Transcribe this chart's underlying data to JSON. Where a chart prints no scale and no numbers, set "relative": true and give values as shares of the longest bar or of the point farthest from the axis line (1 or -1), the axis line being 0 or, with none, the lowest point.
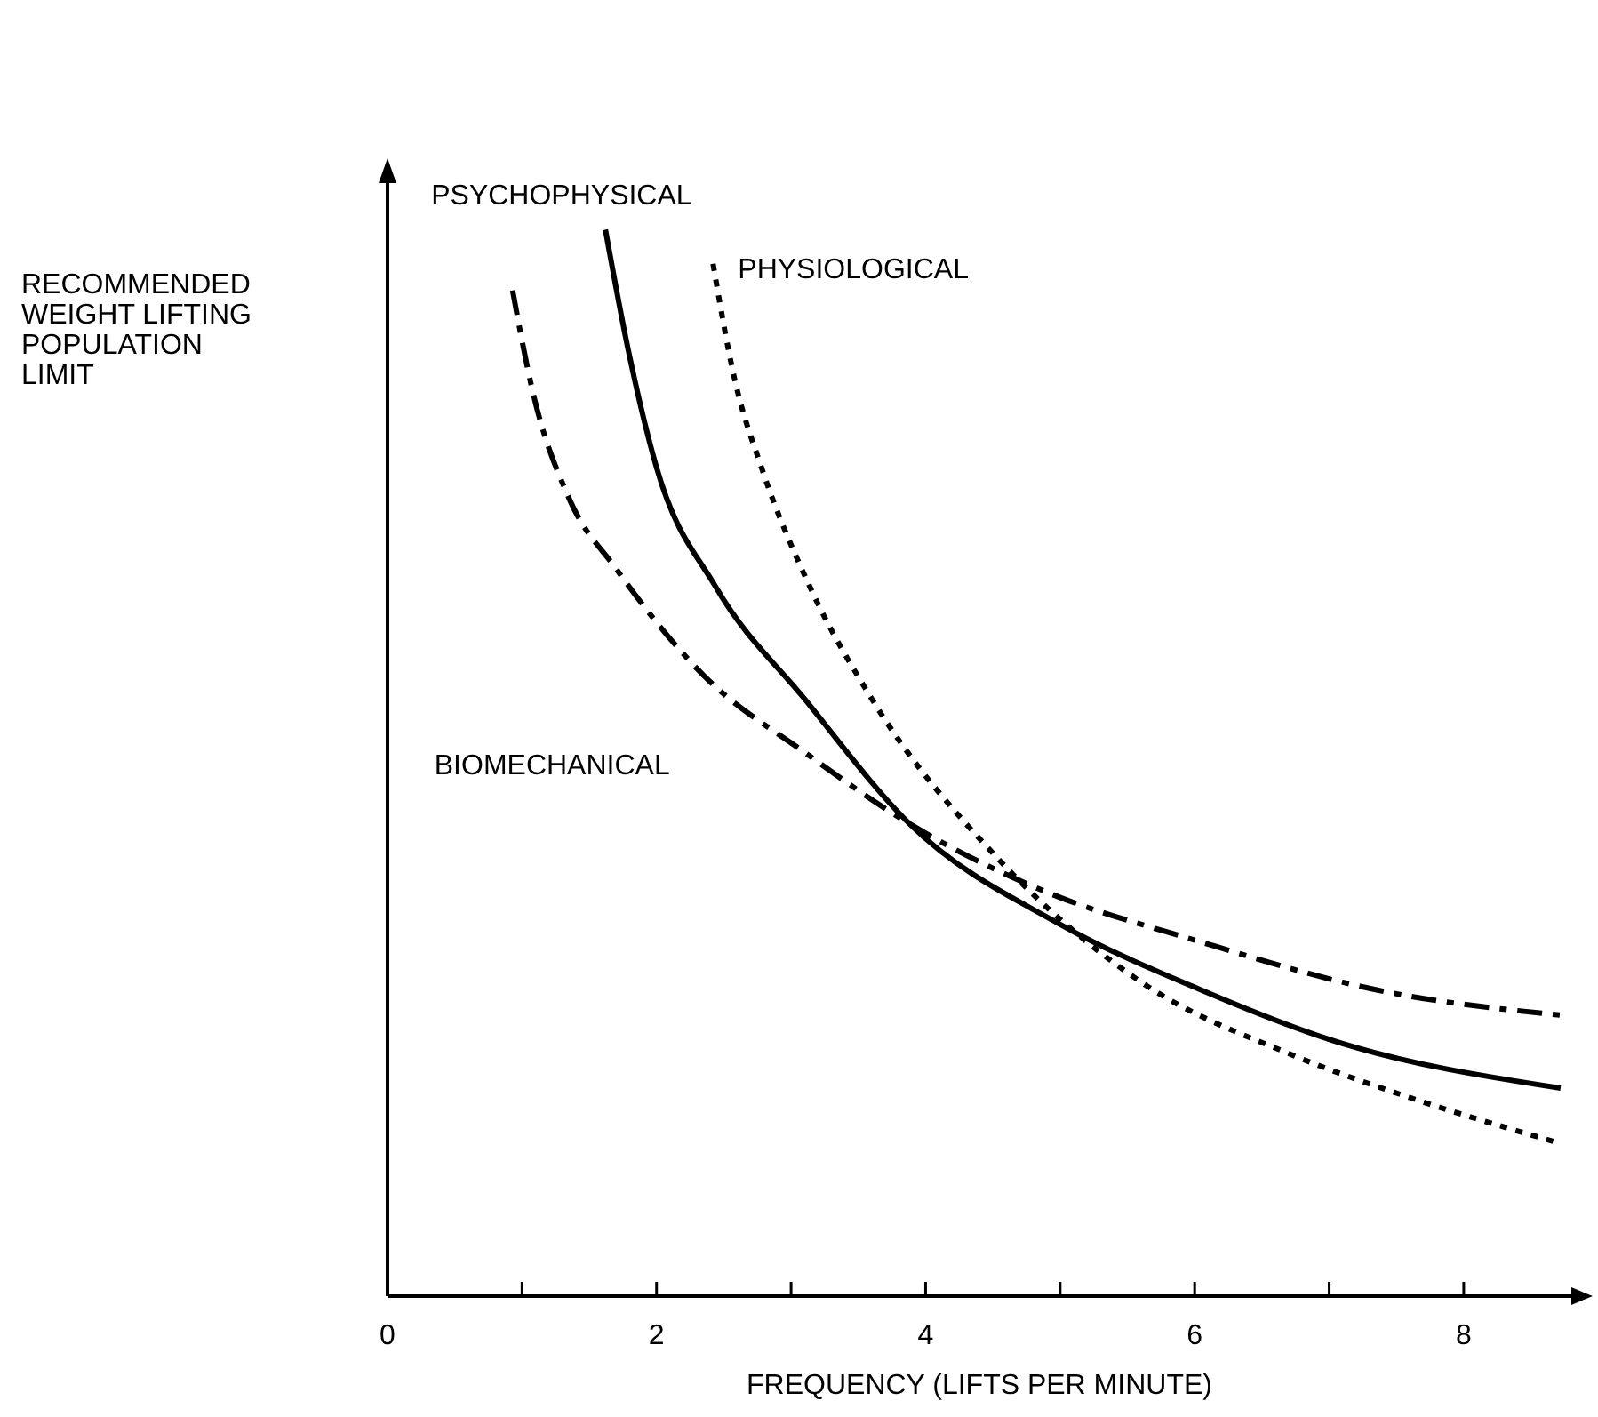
{
  "chart_data": {
    "type": "line",
    "relative": true,
    "xlabel": "FREQUENCY (LIFTS PER MINUTE)",
    "ylabel": "RECOMMENDED WEIGHT LIFTING POPULATION LIMIT",
    "xlim": [
      0,
      8.8
    ],
    "xticks": [
      0,
      {
        "value": 1,
        "label": null
      },
      2,
      {
        "value": 3,
        "label": null
      },
      4,
      {
        "value": 5,
        "label": null
      },
      6,
      {
        "value": 7,
        "label": null
      },
      8
    ],
    "marker": "none",
    "series": [
      {
        "name": "PSYCHOPHYSICAL",
        "color": "#000000",
        "line_style": "solid",
        "x": [
          1.62,
          1.79,
          2.0,
          2.44,
          3.1,
          3.88,
          5.01,
          6.05,
          7.02,
          8.72
        ],
        "values": [
          1.0,
          0.887,
          0.777,
          0.665,
          0.56,
          0.443,
          0.348,
          0.287,
          0.24,
          0.195
        ]
      },
      {
        "name": "PHYSIOLOGICAL",
        "color": "#000000",
        "line_style": "dotted",
        "x": [
          2.42,
          2.58,
          2.78,
          3.14,
          3.6,
          4.54,
          5.62,
          6.71,
          7.58,
          8.67
        ],
        "values": [
          0.968,
          0.86,
          0.777,
          0.665,
          0.56,
          0.41,
          0.293,
          0.227,
          0.187,
          0.145
        ]
      },
      {
        "name": "BIOMECHANICAL",
        "color": "#000000",
        "line_style": "dashdot",
        "x": [
          0.93,
          1.08,
          1.35,
          1.7,
          2.35,
          3.1,
          3.88,
          4.84,
          6.05,
          7.36,
          8.76
        ],
        "values": [
          0.943,
          0.848,
          0.748,
          0.682,
          0.582,
          0.51,
          0.443,
          0.382,
          0.332,
          0.287,
          0.263
        ]
      }
    ]
  }
}
